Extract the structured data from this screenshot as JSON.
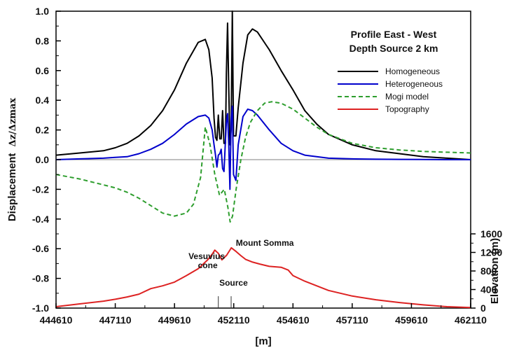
{
  "chart_data": {
    "type": "line",
    "title_lines": [
      "Profile East - West",
      "Depth Source 2 km"
    ],
    "xlabel": "[m]",
    "ylabel_main": "Displacement",
    "ylabel_math": "Δz/Δzmax",
    "ylabel_right": "Elevation (m)",
    "xlim": [
      444610,
      462110
    ],
    "ylim": [
      -1.0,
      1.0
    ],
    "ylim_right": [
      0,
      1600
    ],
    "x_ticks": [
      444610,
      447110,
      449610,
      452110,
      454610,
      457110,
      459610,
      462110
    ],
    "x_tick_labels": [
      "444610",
      "447110",
      "449610",
      "452110",
      "454610",
      "457110",
      "459610",
      "462110"
    ],
    "y_ticks": [
      1.0,
      0.8,
      0.6,
      0.4,
      0.2,
      0.0,
      -0.2,
      -0.4,
      -0.6,
      -0.8,
      -1.0
    ],
    "y_tick_labels": [
      "1.0",
      "0.8",
      "0.6",
      "0.4",
      "0.2",
      "0.0",
      "-0.2",
      "-0.4",
      "-0.6",
      "-0.8",
      "-1.0"
    ],
    "y_ticks_right": [
      0,
      400,
      800,
      1200,
      1600
    ],
    "y_tick_labels_right": [
      "0",
      "400",
      "800",
      "1200",
      "1600"
    ],
    "legend_position": "top-right",
    "grid": false,
    "annotations": [
      {
        "text": "Mount Somma",
        "x": 452200,
        "y": -0.58
      },
      {
        "text": "Vesuvius",
        "x": 450200,
        "y": -0.67
      },
      {
        "text": "cone",
        "x": 450600,
        "y": -0.73
      },
      {
        "text": "Source",
        "x": 451500,
        "y": -0.85
      }
    ],
    "source_markers": [
      {
        "x": 451460,
        "y_top": -0.92,
        "y_bottom": -1.0
      },
      {
        "x": 452000,
        "y_top": -0.92,
        "y_bottom": -1.0
      }
    ],
    "zero_line": {
      "y": 0.0,
      "color": "#7f7f7f"
    },
    "series": [
      {
        "name": "Homogeneous",
        "color": "#000000",
        "dash": "solid",
        "x": [
          444610,
          445610,
          446610,
          447110,
          447610,
          448110,
          448610,
          449110,
          449610,
          450110,
          450610,
          450910,
          451060,
          451200,
          451280,
          451340,
          451400,
          451460,
          451520,
          451580,
          451640,
          451700,
          451760,
          451800,
          451850,
          451900,
          451950,
          452000,
          452050,
          452100,
          452200,
          452300,
          452500,
          452700,
          452900,
          453110,
          453610,
          454110,
          454610,
          455110,
          455610,
          456110,
          457110,
          458110,
          459110,
          460110,
          461110,
          462110
        ],
        "y": [
          0.03,
          0.045,
          0.06,
          0.08,
          0.11,
          0.16,
          0.23,
          0.33,
          0.47,
          0.65,
          0.79,
          0.81,
          0.74,
          0.55,
          0.28,
          0.15,
          0.13,
          0.3,
          0.14,
          0.14,
          0.33,
          0.11,
          0.11,
          0.58,
          0.92,
          0.48,
          0.1,
          0.2,
          1.0,
          0.16,
          0.16,
          0.35,
          0.65,
          0.84,
          0.88,
          0.86,
          0.74,
          0.6,
          0.47,
          0.33,
          0.24,
          0.17,
          0.1,
          0.06,
          0.04,
          0.02,
          0.01,
          0.0
        ]
      },
      {
        "name": "Heterogeneous",
        "color": "#0000cc",
        "dash": "solid",
        "x": [
          444610,
          445610,
          446610,
          447110,
          447610,
          448110,
          448610,
          449110,
          449610,
          450110,
          450610,
          450910,
          451060,
          451200,
          451280,
          451340,
          451400,
          451460,
          451520,
          451580,
          451640,
          451700,
          451760,
          451800,
          451850,
          451900,
          451950,
          452000,
          452050,
          452100,
          452200,
          452300,
          452500,
          452700,
          452900,
          453110,
          453610,
          454110,
          454610,
          455110,
          455610,
          456110,
          457110,
          458110,
          459110,
          460110,
          461110,
          462110
        ],
        "y": [
          0.0,
          0.005,
          0.01,
          0.015,
          0.02,
          0.04,
          0.07,
          0.11,
          0.17,
          0.24,
          0.29,
          0.3,
          0.28,
          0.2,
          0.1,
          0.03,
          -0.05,
          0.03,
          0.04,
          0.07,
          -0.06,
          -0.08,
          0.13,
          0.25,
          0.31,
          0.1,
          -0.2,
          0.27,
          0.36,
          -0.1,
          -0.14,
          0.1,
          0.29,
          0.34,
          0.33,
          0.3,
          0.2,
          0.11,
          0.06,
          0.03,
          0.02,
          0.01,
          0.005,
          0.003,
          0.002,
          0.001,
          0.0,
          0.0
        ]
      },
      {
        "name": "Mogi model",
        "color": "#2e9e2e",
        "dash": "dashed",
        "x": [
          444610,
          445610,
          446610,
          447110,
          447610,
          448110,
          448610,
          449110,
          449610,
          450110,
          450410,
          450710,
          450910,
          451110,
          451310,
          451510,
          451710,
          451860,
          451960,
          452060,
          452210,
          452410,
          452610,
          452810,
          453110,
          453410,
          453710,
          454110,
          454610,
          455110,
          455610,
          456110,
          457110,
          458110,
          459110,
          460110,
          461110,
          462110
        ],
        "y": [
          -0.1,
          -0.13,
          -0.17,
          -0.19,
          -0.22,
          -0.26,
          -0.31,
          -0.36,
          -0.38,
          -0.36,
          -0.3,
          -0.12,
          0.22,
          0.1,
          -0.1,
          -0.24,
          -0.2,
          -0.32,
          -0.42,
          -0.38,
          -0.2,
          0.0,
          0.15,
          0.25,
          0.33,
          0.38,
          0.39,
          0.38,
          0.34,
          0.28,
          0.22,
          0.17,
          0.11,
          0.08,
          0.065,
          0.055,
          0.05,
          0.045
        ]
      },
      {
        "name": "Topography",
        "color": "#dd2222",
        "dash": "solid",
        "x": [
          444610,
          445610,
          446610,
          447110,
          447610,
          448110,
          448610,
          449110,
          449610,
          450110,
          450610,
          451010,
          451210,
          451310,
          451460,
          451610,
          451810,
          452010,
          452210,
          452410,
          452610,
          452910,
          453210,
          453610,
          454110,
          454410,
          454610,
          455110,
          455610,
          456110,
          457110,
          458110,
          459110,
          460110,
          461110,
          462110
        ],
        "y": [
          30,
          90,
          150,
          190,
          240,
          300,
          420,
          480,
          560,
          700,
          850,
          1040,
          1170,
          1250,
          1180,
          1040,
          1140,
          1300,
          1220,
          1130,
          1050,
          990,
          950,
          900,
          880,
          820,
          700,
          580,
          480,
          380,
          260,
          180,
          120,
          70,
          30,
          10
        ]
      }
    ]
  }
}
